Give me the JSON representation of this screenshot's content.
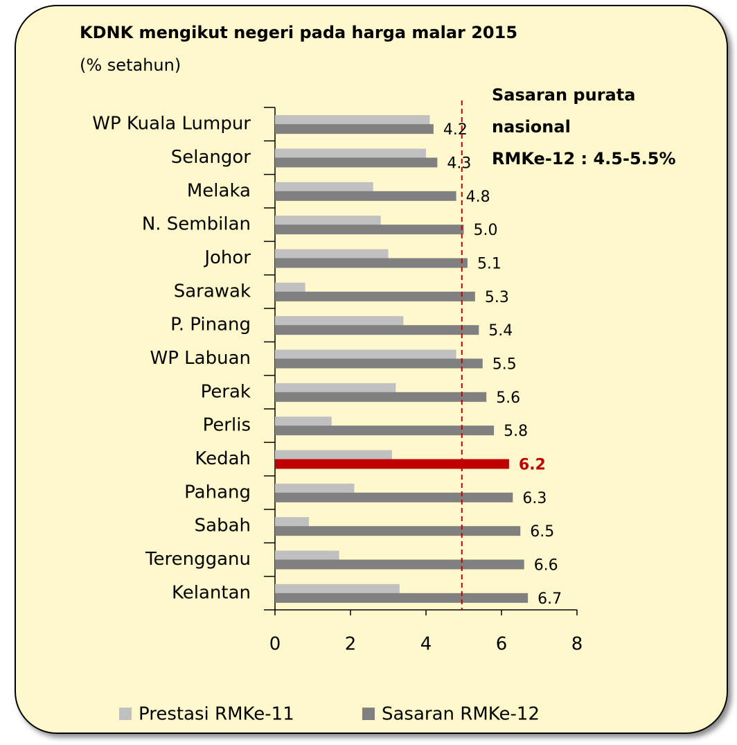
{
  "chart_data": {
    "type": "barh",
    "title": "KDNK mengikut negeri pada harga malar 2015",
    "subtitle": "(% setahun)",
    "annotation": [
      "Sasaran purata",
      "nasional",
      "RMKe-12 : 4.5-5.5%"
    ],
    "categories": [
      "WP Kuala Lumpur",
      "Selangor",
      "Melaka",
      "N. Sembilan",
      "Johor",
      "Sarawak",
      "P. Pinang",
      "WP Labuan",
      "Perak",
      "Perlis",
      "Kedah",
      "Pahang",
      "Sabah",
      "Terengganu",
      "Kelantan"
    ],
    "series": [
      {
        "name": "Prestasi RMKe-11",
        "color": "#c0c0c0",
        "values": [
          4.1,
          4.0,
          2.6,
          2.8,
          3.0,
          0.8,
          3.4,
          4.8,
          3.2,
          1.5,
          3.1,
          2.1,
          0.9,
          1.7,
          3.3
        ]
      },
      {
        "name": "Sasaran RMKe-12",
        "color": "#808080",
        "values": [
          4.2,
          4.3,
          4.8,
          5.0,
          5.1,
          5.3,
          5.4,
          5.5,
          5.6,
          5.8,
          6.2,
          6.3,
          6.5,
          6.6,
          6.7
        ],
        "value_labels": [
          "4.2",
          "4.3",
          "4.8",
          "5.0",
          "5.1",
          "5.3",
          "5.4",
          "5.5",
          "5.6",
          "5.8",
          "6.2",
          "6.3",
          "6.5",
          "6.6",
          "6.7"
        ],
        "colors": [
          "#808080",
          "#808080",
          "#808080",
          "#808080",
          "#808080",
          "#808080",
          "#808080",
          "#808080",
          "#808080",
          "#808080",
          "#c00000",
          "#808080",
          "#808080",
          "#808080",
          "#808080"
        ]
      }
    ],
    "reference_line": {
      "value": 4.95,
      "color": "#c00000"
    },
    "xlim": [
      0,
      8
    ],
    "xticks": [
      0,
      2,
      4,
      6,
      8
    ]
  }
}
